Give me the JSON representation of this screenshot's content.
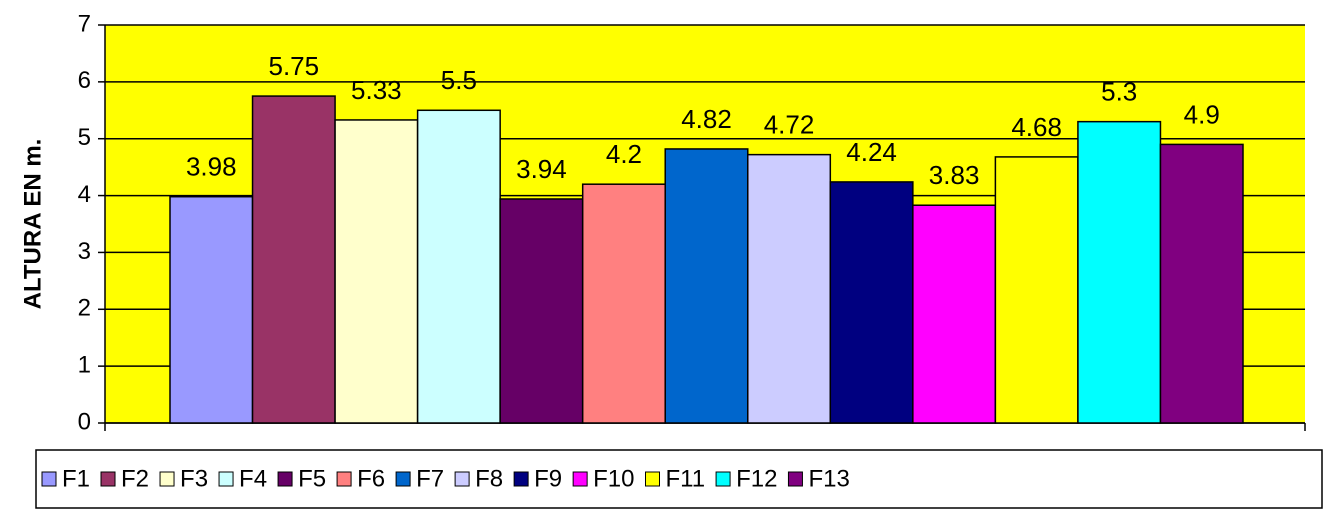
{
  "chart_data": {
    "type": "bar",
    "ylabel": "ALTURA EN m.",
    "categories": [
      null
    ],
    "ylim": [
      0,
      7
    ],
    "yticks": [
      0,
      1,
      2,
      3,
      4,
      5,
      6,
      7
    ],
    "grid": true,
    "legend": "bottom",
    "plot_background": "#ffff00",
    "series": [
      {
        "name": "F1",
        "color": "#9999ff",
        "values": [
          3.98
        ]
      },
      {
        "name": "F2",
        "color": "#993366",
        "values": [
          5.75
        ]
      },
      {
        "name": "F3",
        "color": "#ffffcc",
        "values": [
          5.33
        ]
      },
      {
        "name": "F4",
        "color": "#ccffff",
        "values": [
          5.5
        ]
      },
      {
        "name": "F5",
        "color": "#660066",
        "values": [
          3.94
        ]
      },
      {
        "name": "F6",
        "color": "#ff8080",
        "values": [
          4.2
        ]
      },
      {
        "name": "F7",
        "color": "#0066cc",
        "values": [
          4.82
        ]
      },
      {
        "name": "F8",
        "color": "#ccccff",
        "values": [
          4.72
        ]
      },
      {
        "name": "F9",
        "color": "#000080",
        "values": [
          4.24
        ]
      },
      {
        "name": "F10",
        "color": "#ff00ff",
        "values": [
          3.83
        ]
      },
      {
        "name": "F11",
        "color": "#ffff00",
        "values": [
          4.68
        ]
      },
      {
        "name": "F12",
        "color": "#00ffff",
        "values": [
          5.3
        ]
      },
      {
        "name": "F13",
        "color": "#800080",
        "values": [
          4.9
        ]
      }
    ]
  }
}
